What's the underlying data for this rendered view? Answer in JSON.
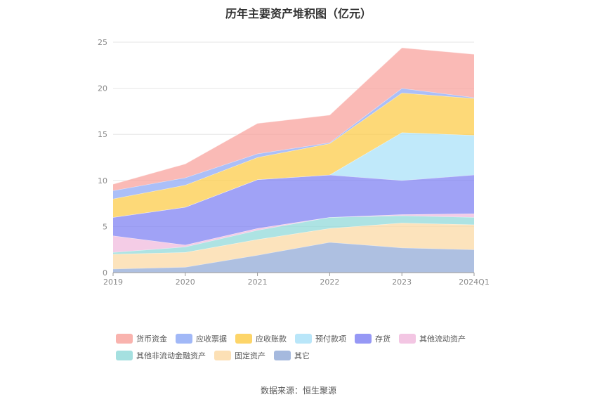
{
  "chart_data": {
    "type": "area",
    "stacked": true,
    "title": "历年主要资产堆积图（亿元）",
    "categories": [
      "2019",
      "2020",
      "2021",
      "2022",
      "2023",
      "2024Q1"
    ],
    "ylim": [
      0,
      25
    ],
    "yticks": [
      0,
      5,
      10,
      15,
      20,
      25
    ],
    "grid": true,
    "legend_position": "bottom",
    "series": [
      {
        "name": "其它",
        "color": "#8fa8d6",
        "values": [
          0.4,
          0.6,
          1.9,
          3.3,
          2.7,
          2.5
        ]
      },
      {
        "name": "固定资产",
        "color": "#fbd8a2",
        "values": [
          1.6,
          1.6,
          1.7,
          1.5,
          2.7,
          2.7
        ]
      },
      {
        "name": "其他非流动金融资产",
        "color": "#8ed8d8",
        "values": [
          0.2,
          0.6,
          1.0,
          1.2,
          0.8,
          0.8
        ]
      },
      {
        "name": "其他流动资产",
        "color": "#f0b8dc",
        "values": [
          1.8,
          0.2,
          0.2,
          0.0,
          0.1,
          0.4
        ]
      },
      {
        "name": "存货",
        "color": "#7c7ef2",
        "values": [
          2.0,
          4.1,
          5.3,
          4.6,
          3.7,
          4.2
        ]
      },
      {
        "name": "预付款项",
        "color": "#a8e0f8",
        "values": [
          0.0,
          0.0,
          0.0,
          0.0,
          5.2,
          4.3
        ]
      },
      {
        "name": "应收账款",
        "color": "#fcca44",
        "values": [
          2.0,
          2.4,
          2.4,
          3.4,
          4.3,
          4.0
        ]
      },
      {
        "name": "应收票据",
        "color": "#8aa6f5",
        "values": [
          0.9,
          0.8,
          0.4,
          0.1,
          0.5,
          0.1
        ]
      },
      {
        "name": "货币资金",
        "color": "#f8a09a",
        "values": [
          0.7,
          1.5,
          3.3,
          3.0,
          4.4,
          4.7
        ]
      }
    ]
  },
  "legend": [
    {
      "label": "货币资金",
      "color": "#f8a09a"
    },
    {
      "label": "应收票据",
      "color": "#8aa6f5"
    },
    {
      "label": "应收账款",
      "color": "#fcca44"
    },
    {
      "label": "预付款项",
      "color": "#a8e0f8"
    },
    {
      "label": "存货",
      "color": "#7c7ef2"
    },
    {
      "label": "其他流动资产",
      "color": "#f0b8dc"
    },
    {
      "label": "其他非流动金融资产",
      "color": "#8ed8d8"
    },
    {
      "label": "固定资产",
      "color": "#fbd8a2"
    },
    {
      "label": "其它",
      "color": "#8fa8d6"
    }
  ],
  "source": "数据来源：恒生聚源"
}
